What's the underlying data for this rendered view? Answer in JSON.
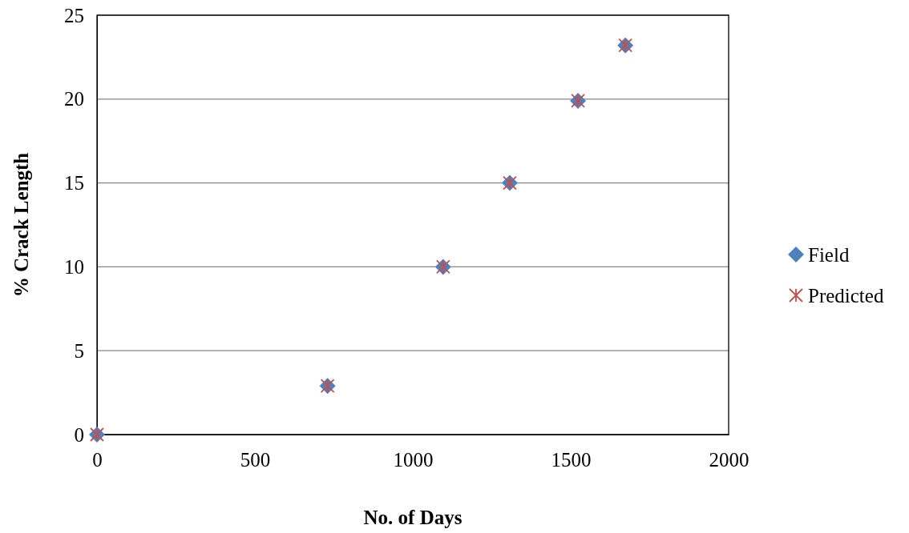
{
  "chart_data": {
    "type": "scatter",
    "xlabel": "No. of Days",
    "ylabel": "% Crack Length",
    "xlim": [
      0,
      2000
    ],
    "xticks": [
      0,
      500,
      1000,
      1500,
      2000
    ],
    "ylim": [
      0,
      25
    ],
    "yticks": [
      0,
      5,
      10,
      15,
      20,
      25
    ],
    "grid": "y",
    "legend": "right",
    "series": [
      {
        "name": "Field",
        "color": "#4f81bd",
        "marker": "diamond",
        "x": [
          0,
          730,
          1096,
          1307,
          1523,
          1673
        ],
        "values": [
          0,
          2.9,
          10,
          15,
          19.9,
          23.2
        ]
      },
      {
        "name": "Predicted",
        "color": "#c0504d",
        "marker": "cross",
        "x": [
          0,
          730,
          1096,
          1307,
          1523,
          1673
        ],
        "values": [
          0,
          2.9,
          10,
          15,
          19.9,
          23.2
        ]
      }
    ]
  }
}
